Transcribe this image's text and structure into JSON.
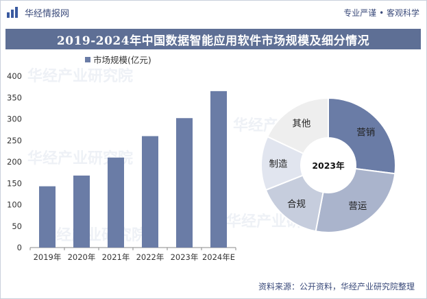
{
  "header": {
    "brand": "华经情报网",
    "slogan": "专业严谨 • 客观科学"
  },
  "title": "2019-2024年中国数据智能应用软件市场规模及细分情况",
  "footer": "资料来源：公开资料，华经产业研究院整理",
  "watermark": "华经产业研究院",
  "colors": {
    "bar": "#6a7ca6",
    "title_bg": "#5e6f95",
    "pie": [
      "#6a7ca6",
      "#aab4cc",
      "#c6cddd",
      "#e1e5ef",
      "#eeeeee"
    ]
  },
  "chart_data": [
    {
      "type": "bar",
      "categories": [
        "2019年",
        "2020年",
        "2021年",
        "2022年",
        "2023年",
        "2024年E"
      ],
      "series": [
        {
          "name": "市场规模(亿元)",
          "values": [
            143,
            168,
            210,
            260,
            302,
            365
          ]
        }
      ],
      "ylim": [
        0,
        400
      ],
      "yticks": [
        0,
        50,
        100,
        150,
        200,
        250,
        300,
        350,
        400
      ],
      "legend": "top-center"
    },
    {
      "type": "pie",
      "center_label": "2023年",
      "labels": [
        "营销",
        "营运",
        "合规",
        "制造",
        "其他"
      ],
      "values": [
        27,
        26,
        16,
        13,
        18
      ]
    }
  ]
}
